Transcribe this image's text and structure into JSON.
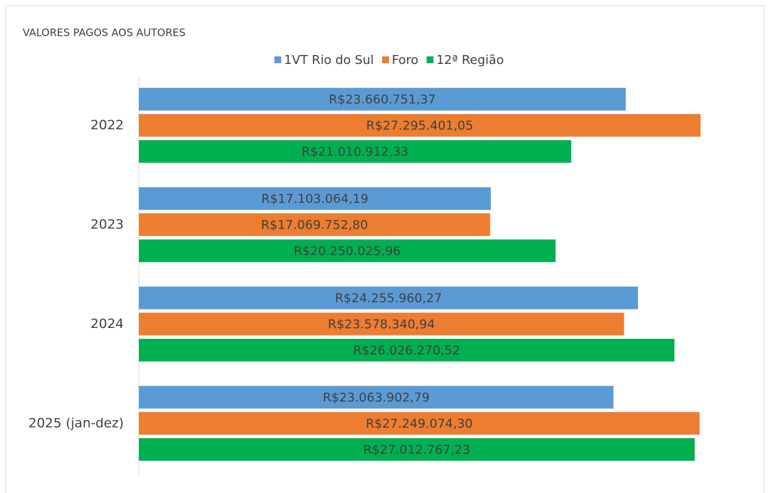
{
  "chart_data": {
    "type": "bar",
    "orientation": "horizontal",
    "title": "VALORES PAGOS AOS AUTORES",
    "categories": [
      "2022",
      "2023",
      "2024",
      "2025 (jan-dez)"
    ],
    "series": [
      {
        "name": "1VT Rio do Sul",
        "color": "#5b9bd5",
        "values": [
          23660751.37,
          17103064.19,
          24255960.27,
          23063902.79
        ],
        "value_labels": [
          "R$23.660.751,37",
          "R$17.103.064,19",
          "R$24.255.960,27",
          "R$23.063.902,79"
        ]
      },
      {
        "name": "Foro",
        "color": "#ed7d31",
        "values": [
          27295401.05,
          17069752.8,
          23578340.94,
          27249074.3
        ],
        "value_labels": [
          "R$27.295.401,05",
          "R$17.069.752,80",
          "R$23.578.340,94",
          "R$27.249.074,30"
        ]
      },
      {
        "name": "12ª Região",
        "color": "#00b050",
        "values": [
          21010912.33,
          20250025.96,
          26026270.52,
          27012767.23
        ],
        "value_labels": [
          "R$21.010.912,33",
          "R$20.250.025,96",
          "R$26.026.270,52",
          "R$27.012.767,23"
        ]
      }
    ],
    "legend": "top"
  }
}
